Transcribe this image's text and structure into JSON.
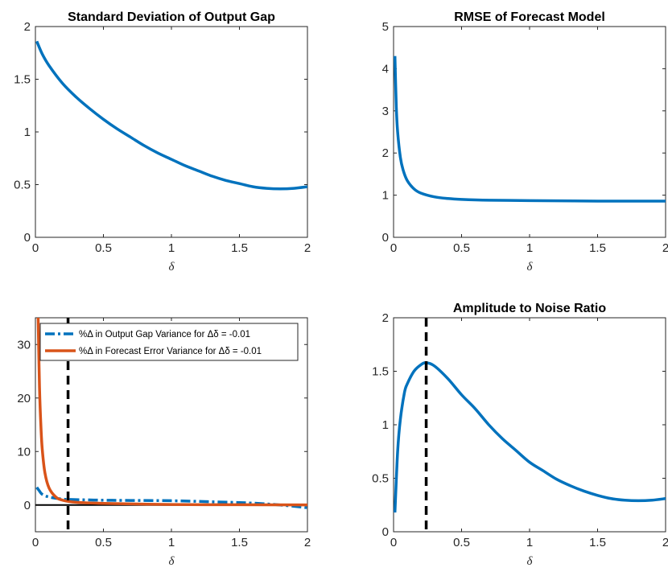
{
  "figure": {
    "colors": {
      "blue": "#0072BD",
      "orange": "#D95319",
      "black": "#000000"
    }
  },
  "chart_data": [
    {
      "type": "line",
      "title": "Standard Deviation of Output Gap",
      "xlabel": "δ",
      "ylabel": "",
      "xlim": [
        0,
        2
      ],
      "ylim": [
        0,
        2
      ],
      "xticks": [
        "0",
        "0.5",
        "1",
        "1.5",
        "2"
      ],
      "yticks": [
        "0",
        "0.5",
        "1",
        "1.5",
        "2"
      ],
      "grid": false,
      "series": [
        {
          "color": "#0072BD",
          "style": "solid",
          "x": [
            0.01,
            0.05,
            0.1,
            0.2,
            0.3,
            0.4,
            0.5,
            0.6,
            0.7,
            0.8,
            0.9,
            1.0,
            1.1,
            1.2,
            1.3,
            1.4,
            1.5,
            1.6,
            1.7,
            1.8,
            1.9,
            2.0
          ],
          "y": [
            1.86,
            1.74,
            1.63,
            1.46,
            1.33,
            1.22,
            1.12,
            1.03,
            0.95,
            0.87,
            0.8,
            0.74,
            0.68,
            0.63,
            0.58,
            0.54,
            0.51,
            0.48,
            0.465,
            0.46,
            0.465,
            0.48
          ]
        }
      ]
    },
    {
      "type": "line",
      "title": "RMSE of Forecast Model",
      "xlabel": "δ",
      "ylabel": "",
      "xlim": [
        0,
        2
      ],
      "ylim": [
        0,
        5
      ],
      "xticks": [
        "0",
        "0.5",
        "1",
        "1.5",
        "2"
      ],
      "yticks": [
        "0",
        "1",
        "2",
        "3",
        "4",
        "5"
      ],
      "grid": false,
      "series": [
        {
          "color": "#0072BD",
          "style": "solid",
          "x": [
            0.01,
            0.02,
            0.03,
            0.05,
            0.07,
            0.1,
            0.15,
            0.2,
            0.3,
            0.4,
            0.5,
            0.7,
            1.0,
            1.5,
            2.0
          ],
          "y": [
            4.3,
            3.1,
            2.5,
            1.9,
            1.6,
            1.35,
            1.15,
            1.05,
            0.96,
            0.92,
            0.9,
            0.88,
            0.87,
            0.86,
            0.86
          ]
        }
      ]
    },
    {
      "type": "line",
      "title": "",
      "xlabel": "δ",
      "ylabel": "",
      "xlim": [
        0,
        2
      ],
      "ylim": [
        -5,
        35
      ],
      "xticks": [
        "0",
        "0.5",
        "1",
        "1.5",
        "2"
      ],
      "yticks": [
        "0",
        "10",
        "20",
        "30"
      ],
      "grid": false,
      "legend": "top-right",
      "zero_line": true,
      "vline_x": 0.24,
      "series": [
        {
          "name": "%Δ in Output Gap Variance for Δδ = -0.01",
          "color": "#0072BD",
          "style": "dashdot",
          "x": [
            0.01,
            0.03,
            0.05,
            0.1,
            0.2,
            0.3,
            0.5,
            0.7,
            1.0,
            1.3,
            1.6,
            1.8,
            2.0
          ],
          "y": [
            3.3,
            2.6,
            2.0,
            1.5,
            1.1,
            1.0,
            0.9,
            0.85,
            0.8,
            0.6,
            0.35,
            0.0,
            -0.5
          ]
        },
        {
          "name": "%Δ in Forecast Error Variance for Δδ = -0.01",
          "color": "#D95319",
          "style": "solid",
          "x": [
            0.02,
            0.03,
            0.04,
            0.05,
            0.07,
            0.1,
            0.15,
            0.2,
            0.3,
            0.5,
            1.0,
            1.5,
            2.0
          ],
          "y": [
            35,
            22,
            15,
            10.5,
            6.0,
            3.2,
            1.5,
            0.9,
            0.5,
            0.3,
            0.1,
            0.05,
            0.02
          ]
        }
      ]
    },
    {
      "type": "line",
      "title": "Amplitude to Noise Ratio",
      "xlabel": "δ",
      "ylabel": "",
      "xlim": [
        0,
        2
      ],
      "ylim": [
        0,
        2
      ],
      "xticks": [
        "0",
        "0.5",
        "1",
        "1.5",
        "2"
      ],
      "yticks": [
        "0",
        "0.5",
        "1",
        "1.5",
        "2"
      ],
      "grid": false,
      "vline_x": 0.24,
      "series": [
        {
          "color": "#0072BD",
          "style": "solid",
          "x": [
            0.01,
            0.03,
            0.05,
            0.08,
            0.1,
            0.15,
            0.2,
            0.24,
            0.3,
            0.4,
            0.5,
            0.6,
            0.7,
            0.8,
            0.9,
            1.0,
            1.1,
            1.2,
            1.3,
            1.4,
            1.5,
            1.6,
            1.7,
            1.8,
            1.9,
            2.0
          ],
          "y": [
            0.18,
            0.75,
            1.05,
            1.3,
            1.38,
            1.5,
            1.56,
            1.58,
            1.55,
            1.43,
            1.28,
            1.15,
            1.0,
            0.87,
            0.76,
            0.65,
            0.57,
            0.49,
            0.43,
            0.38,
            0.34,
            0.31,
            0.295,
            0.29,
            0.295,
            0.31
          ]
        }
      ]
    }
  ]
}
